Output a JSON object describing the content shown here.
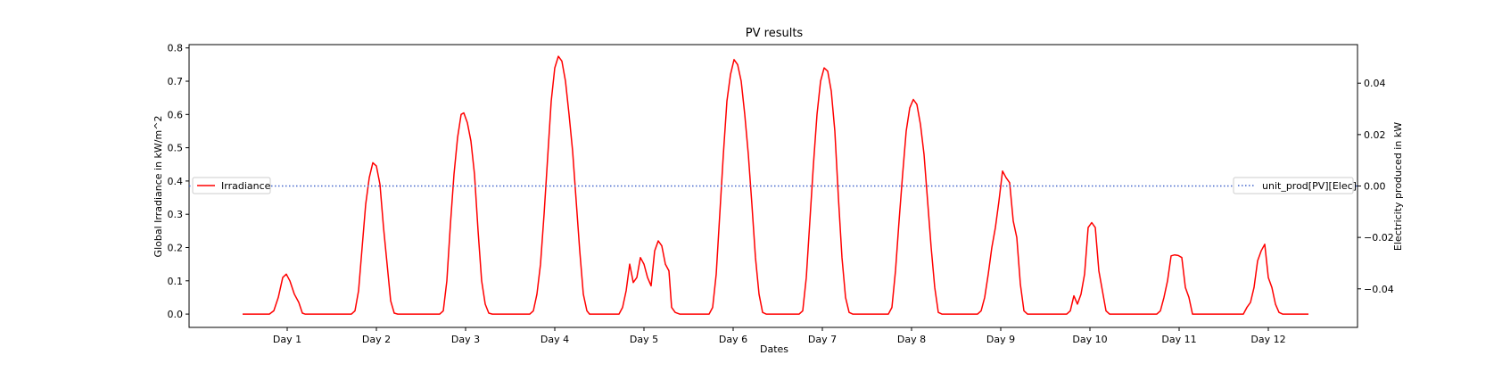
{
  "chart_data": {
    "type": "line",
    "title": "PV results",
    "xlabel": "Dates",
    "ylabel_left": "Global Irradiance in kW/m^2",
    "ylabel_right": "Electricity produced in kW",
    "x_ticks": [
      {
        "day": 1,
        "label": "Day 1"
      },
      {
        "day": 2,
        "label": "Day 2"
      },
      {
        "day": 3,
        "label": "Day 3"
      },
      {
        "day": 4,
        "label": "Day 4"
      },
      {
        "day": 5,
        "label": "Day 5"
      },
      {
        "day": 6,
        "label": "Day 6"
      },
      {
        "day": 7,
        "label": "Day 7"
      },
      {
        "day": 8,
        "label": "Day 8"
      },
      {
        "day": 9,
        "label": "Day 9"
      },
      {
        "day": 10,
        "label": "Day 10"
      },
      {
        "day": 11,
        "label": "Day 11"
      },
      {
        "day": 12,
        "label": "Day 12"
      }
    ],
    "xlim": [
      -0.1,
      13.0
    ],
    "ylim_left": [
      -0.04,
      0.81
    ],
    "ylim_right": [
      -0.055,
      0.055
    ],
    "yticks_left": [
      0.0,
      0.1,
      0.2,
      0.3,
      0.4,
      0.5,
      0.6,
      0.7,
      0.8
    ],
    "yticks_right": [
      -0.04,
      -0.02,
      0.0,
      0.02,
      0.04
    ],
    "yticklabels_left": [
      "0.0",
      "0.1",
      "0.2",
      "0.3",
      "0.4",
      "0.5",
      "0.6",
      "0.7",
      "0.8"
    ],
    "yticklabels_right": [
      "−0.04",
      "−0.02",
      "0.00",
      "0.02",
      "0.04"
    ],
    "grid": false,
    "series": [
      {
        "name": "Irradiance",
        "axis": "left",
        "color": "#ff0000",
        "style": "solid",
        "legend_position": "center-left",
        "points": [
          [
            0.5,
            0
          ],
          [
            0.8,
            0
          ],
          [
            0.85,
            0.01
          ],
          [
            0.9,
            0.05
          ],
          [
            0.95,
            0.11
          ],
          [
            0.99,
            0.12
          ],
          [
            1.03,
            0.1
          ],
          [
            1.08,
            0.06
          ],
          [
            1.13,
            0.035
          ],
          [
            1.17,
            0.003
          ],
          [
            1.2,
            0
          ],
          [
            1.72,
            0
          ],
          [
            1.76,
            0.01
          ],
          [
            1.8,
            0.07
          ],
          [
            1.84,
            0.2
          ],
          [
            1.88,
            0.33
          ],
          [
            1.92,
            0.41
          ],
          [
            1.96,
            0.455
          ],
          [
            2.0,
            0.445
          ],
          [
            2.04,
            0.39
          ],
          [
            2.08,
            0.26
          ],
          [
            2.12,
            0.15
          ],
          [
            2.16,
            0.04
          ],
          [
            2.2,
            0.003
          ],
          [
            2.24,
            0
          ],
          [
            2.71,
            0
          ],
          [
            2.75,
            0.01
          ],
          [
            2.79,
            0.1
          ],
          [
            2.83,
            0.27
          ],
          [
            2.87,
            0.42
          ],
          [
            2.91,
            0.53
          ],
          [
            2.95,
            0.6
          ],
          [
            2.98,
            0.605
          ],
          [
            3.02,
            0.575
          ],
          [
            3.06,
            0.52
          ],
          [
            3.1,
            0.42
          ],
          [
            3.14,
            0.25
          ],
          [
            3.18,
            0.1
          ],
          [
            3.22,
            0.03
          ],
          [
            3.26,
            0.003
          ],
          [
            3.3,
            0
          ],
          [
            3.72,
            0
          ],
          [
            3.76,
            0.01
          ],
          [
            3.8,
            0.06
          ],
          [
            3.84,
            0.15
          ],
          [
            3.88,
            0.3
          ],
          [
            3.92,
            0.47
          ],
          [
            3.96,
            0.64
          ],
          [
            4.0,
            0.74
          ],
          [
            4.04,
            0.775
          ],
          [
            4.08,
            0.76
          ],
          [
            4.12,
            0.7
          ],
          [
            4.16,
            0.6
          ],
          [
            4.2,
            0.49
          ],
          [
            4.24,
            0.34
          ],
          [
            4.28,
            0.19
          ],
          [
            4.32,
            0.06
          ],
          [
            4.36,
            0.01
          ],
          [
            4.39,
            0
          ],
          [
            4.72,
            0
          ],
          [
            4.76,
            0.02
          ],
          [
            4.8,
            0.07
          ],
          [
            4.84,
            0.15
          ],
          [
            4.88,
            0.095
          ],
          [
            4.92,
            0.11
          ],
          [
            4.96,
            0.17
          ],
          [
            5.0,
            0.15
          ],
          [
            5.04,
            0.11
          ],
          [
            5.08,
            0.085
          ],
          [
            5.12,
            0.19
          ],
          [
            5.16,
            0.22
          ],
          [
            5.2,
            0.205
          ],
          [
            5.24,
            0.15
          ],
          [
            5.28,
            0.13
          ],
          [
            5.31,
            0.02
          ],
          [
            5.35,
            0.005
          ],
          [
            5.4,
            0
          ],
          [
            5.73,
            0
          ],
          [
            5.77,
            0.02
          ],
          [
            5.81,
            0.12
          ],
          [
            5.85,
            0.3
          ],
          [
            5.89,
            0.48
          ],
          [
            5.93,
            0.64
          ],
          [
            5.97,
            0.72
          ],
          [
            6.01,
            0.765
          ],
          [
            6.05,
            0.75
          ],
          [
            6.09,
            0.7
          ],
          [
            6.13,
            0.6
          ],
          [
            6.17,
            0.48
          ],
          [
            6.21,
            0.33
          ],
          [
            6.25,
            0.17
          ],
          [
            6.29,
            0.06
          ],
          [
            6.33,
            0.005
          ],
          [
            6.37,
            0
          ],
          [
            6.74,
            0
          ],
          [
            6.78,
            0.01
          ],
          [
            6.82,
            0.11
          ],
          [
            6.86,
            0.28
          ],
          [
            6.9,
            0.45
          ],
          [
            6.94,
            0.6
          ],
          [
            6.98,
            0.7
          ],
          [
            7.02,
            0.74
          ],
          [
            7.06,
            0.73
          ],
          [
            7.1,
            0.67
          ],
          [
            7.14,
            0.55
          ],
          [
            7.18,
            0.35
          ],
          [
            7.22,
            0.17
          ],
          [
            7.26,
            0.05
          ],
          [
            7.3,
            0.005
          ],
          [
            7.34,
            0
          ],
          [
            7.74,
            0
          ],
          [
            7.78,
            0.02
          ],
          [
            7.82,
            0.13
          ],
          [
            7.86,
            0.28
          ],
          [
            7.9,
            0.42
          ],
          [
            7.94,
            0.55
          ],
          [
            7.98,
            0.62
          ],
          [
            8.02,
            0.645
          ],
          [
            8.06,
            0.63
          ],
          [
            8.1,
            0.57
          ],
          [
            8.14,
            0.48
          ],
          [
            8.18,
            0.34
          ],
          [
            8.22,
            0.2
          ],
          [
            8.26,
            0.08
          ],
          [
            8.3,
            0.005
          ],
          [
            8.34,
            0
          ],
          [
            8.74,
            0
          ],
          [
            8.78,
            0.01
          ],
          [
            8.82,
            0.05
          ],
          [
            8.86,
            0.12
          ],
          [
            8.9,
            0.2
          ],
          [
            8.94,
            0.26
          ],
          [
            8.98,
            0.34
          ],
          [
            9.02,
            0.43
          ],
          [
            9.06,
            0.41
          ],
          [
            9.1,
            0.395
          ],
          [
            9.14,
            0.28
          ],
          [
            9.18,
            0.23
          ],
          [
            9.22,
            0.09
          ],
          [
            9.26,
            0.01
          ],
          [
            9.3,
            0
          ],
          [
            9.74,
            0
          ],
          [
            9.78,
            0.01
          ],
          [
            9.82,
            0.055
          ],
          [
            9.86,
            0.03
          ],
          [
            9.9,
            0.06
          ],
          [
            9.94,
            0.12
          ],
          [
            9.98,
            0.26
          ],
          [
            10.02,
            0.275
          ],
          [
            10.06,
            0.26
          ],
          [
            10.1,
            0.13
          ],
          [
            10.14,
            0.07
          ],
          [
            10.18,
            0.01
          ],
          [
            10.22,
            0
          ],
          [
            10.75,
            0
          ],
          [
            10.79,
            0.01
          ],
          [
            10.83,
            0.05
          ],
          [
            10.87,
            0.1
          ],
          [
            10.91,
            0.175
          ],
          [
            10.95,
            0.178
          ],
          [
            10.99,
            0.176
          ],
          [
            11.03,
            0.17
          ],
          [
            11.07,
            0.08
          ],
          [
            11.11,
            0.05
          ],
          [
            11.15,
            0
          ],
          [
            11.72,
            0
          ],
          [
            11.76,
            0.02
          ],
          [
            11.8,
            0.035
          ],
          [
            11.84,
            0.08
          ],
          [
            11.88,
            0.16
          ],
          [
            11.92,
            0.19
          ],
          [
            11.96,
            0.21
          ],
          [
            12.0,
            0.11
          ],
          [
            12.04,
            0.08
          ],
          [
            12.08,
            0.03
          ],
          [
            12.12,
            0.005
          ],
          [
            12.16,
            0
          ],
          [
            12.45,
            0
          ]
        ]
      },
      {
        "name": "unit_prod[PV][Elec]",
        "axis": "right",
        "color": "#4466cc",
        "style": "dotted",
        "legend_position": "center-right",
        "points": [
          [
            -0.1,
            0.0
          ],
          [
            13.0,
            0.0
          ]
        ]
      }
    ]
  }
}
